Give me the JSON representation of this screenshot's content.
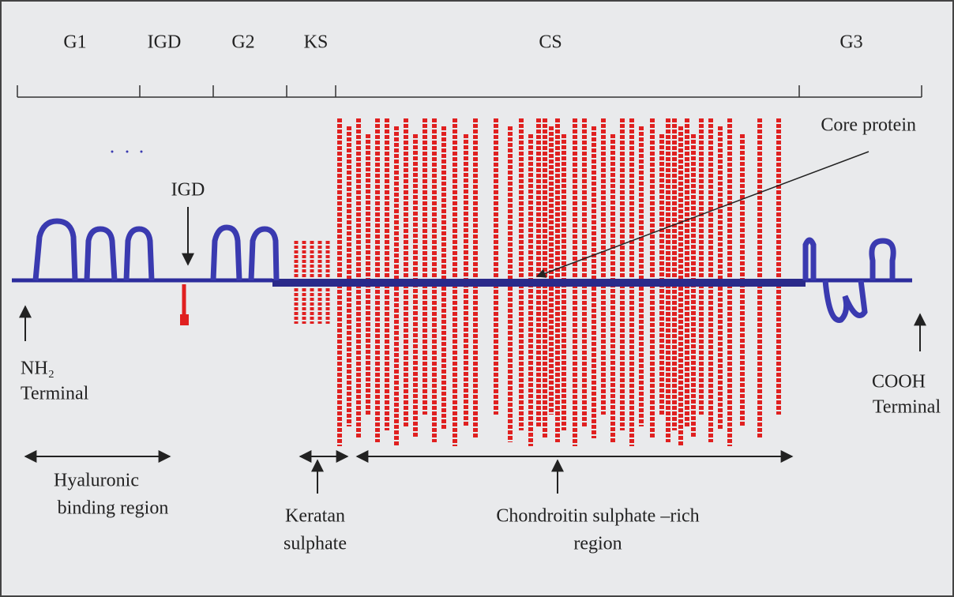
{
  "domains": [
    "G1",
    "IGD",
    "G2",
    "KS",
    "CS",
    "G3"
  ],
  "labels": {
    "core_protein": "Core protein",
    "igd": "IGD",
    "nh2_terminal": [
      "NH₂",
      "Terminal"
    ],
    "cooh_terminal": [
      "COOH",
      "Terminal"
    ],
    "hyaluronic_binding_region": [
      "Hyaluronic",
      "binding region"
    ],
    "keratan_sulphate": [
      "Keratan",
      "sulphate"
    ],
    "chondroitin_sulphate_rich_region": [
      "Chondroitin sulphate –rich",
      "region"
    ]
  }
}
